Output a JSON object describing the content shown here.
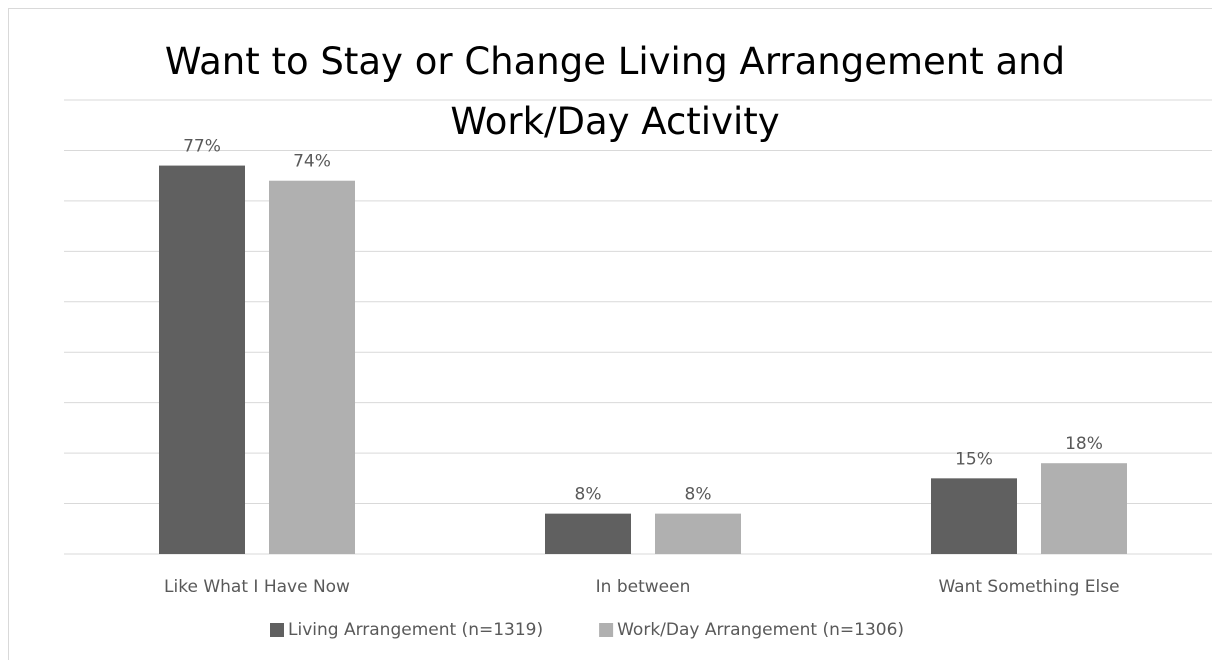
{
  "chart_data": {
    "type": "bar",
    "title": "Want to Stay or Change Living Arrangement and Work/Day Activity",
    "categories": [
      "Like What I Have Now",
      "In between",
      "Want Something Else"
    ],
    "series": [
      {
        "name": "Living Arrangement (n=1319)",
        "color": "#606060",
        "values": [
          77,
          8,
          15
        ],
        "value_labels": [
          "77%",
          "8%",
          "15%"
        ]
      },
      {
        "name": "Work/Day Arrangement (n=1306)",
        "color": "#b0b0b0",
        "values": [
          74,
          8,
          18
        ],
        "value_labels": [
          "74%",
          "8%",
          "18%"
        ]
      }
    ],
    "ylim": [
      0,
      90
    ],
    "yticks": [
      0,
      10,
      20,
      30,
      40,
      50,
      60,
      70,
      80,
      90
    ],
    "grid": true,
    "legend": "bottom"
  }
}
